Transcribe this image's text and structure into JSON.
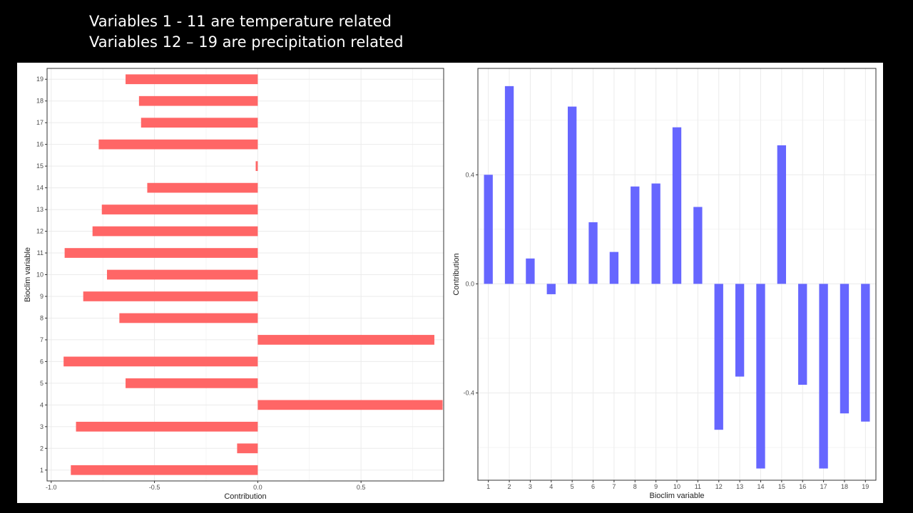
{
  "header": {
    "line1": "Variables 1 - 11 are temperature related",
    "line2": "Variables 12 – 19 are precipitation related"
  },
  "colors": {
    "left_bar": "#ff6666",
    "right_bar": "#6666ff",
    "grid": "#ebebeb",
    "frame": "#333333"
  },
  "chart_data": [
    {
      "type": "bar",
      "orientation": "horizontal",
      "categories": [
        "1",
        "2",
        "3",
        "4",
        "5",
        "6",
        "7",
        "8",
        "9",
        "10",
        "11",
        "12",
        "13",
        "14",
        "15",
        "16",
        "17",
        "18",
        "19"
      ],
      "values": [
        -0.905,
        -0.1,
        -0.88,
        0.895,
        -0.64,
        -0.94,
        0.855,
        -0.67,
        -0.845,
        -0.73,
        -0.935,
        -0.8,
        -0.755,
        -0.535,
        -0.01,
        -0.77,
        -0.565,
        -0.575,
        -0.64
      ],
      "xlabel": "Contribution",
      "ylabel": "Bioclim variable",
      "xlim": [
        -1.02,
        0.9
      ],
      "xticks": [
        -1.0,
        -0.5,
        0.0,
        0.5
      ],
      "xtick_labels": [
        "-1.0",
        "-0.5",
        "0.0",
        "0.5"
      ],
      "grid": true,
      "color": "#ff6666"
    },
    {
      "type": "bar",
      "orientation": "vertical",
      "categories": [
        "1",
        "2",
        "3",
        "4",
        "5",
        "6",
        "7",
        "8",
        "9",
        "10",
        "11",
        "12",
        "13",
        "14",
        "15",
        "16",
        "17",
        "18",
        "19"
      ],
      "values": [
        0.4,
        0.725,
        0.093,
        -0.038,
        0.65,
        0.226,
        0.117,
        0.357,
        0.368,
        0.574,
        0.282,
        -0.535,
        -0.34,
        -0.677,
        0.508,
        -0.37,
        -0.677,
        -0.475,
        -0.505
      ],
      "xlabel": "Bioclim variable",
      "ylabel": "Contribution",
      "ylim": [
        -0.72,
        0.79
      ],
      "yticks": [
        -0.4,
        0.0,
        0.4
      ],
      "ytick_labels": [
        "-0.4",
        "0.0",
        "0.4"
      ],
      "grid": true,
      "color": "#6666ff"
    }
  ]
}
